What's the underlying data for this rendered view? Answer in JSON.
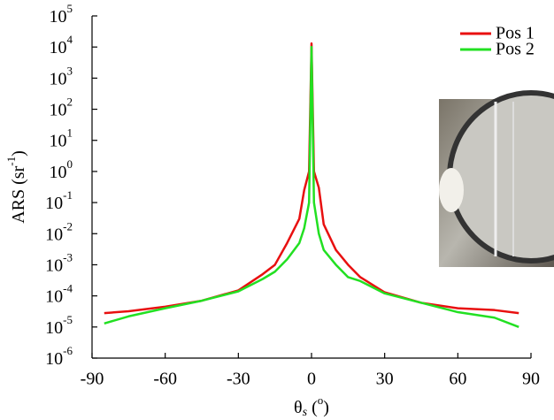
{
  "chart_data": {
    "type": "line",
    "log_y": true,
    "xlabel": [
      "θ",
      "s",
      " (",
      "o",
      ")"
    ],
    "ylabel": [
      "ARS (sr",
      "-1",
      ")"
    ],
    "x": [
      -85,
      -75,
      -60,
      -45,
      -30,
      -20,
      -15,
      -10,
      -5,
      -3,
      -1,
      0,
      1,
      3,
      5,
      10,
      15,
      20,
      30,
      45,
      60,
      75,
      85
    ],
    "series": [
      {
        "name": "Pos 1",
        "color": "#e81010",
        "values": [
          2.8e-05,
          3.2e-05,
          4.5e-05,
          7e-05,
          0.00015,
          0.0005,
          0.001,
          0.005,
          0.03,
          0.25,
          1,
          13000,
          1,
          0.3,
          0.02,
          0.003,
          0.001,
          0.0004,
          0.00013,
          6e-05,
          4e-05,
          3.5e-05,
          2.8e-05
        ]
      },
      {
        "name": "Pos 2",
        "color": "#22e022",
        "values": [
          1.3e-05,
          2.2e-05,
          4e-05,
          7e-05,
          0.00014,
          0.00035,
          0.0006,
          0.0015,
          0.005,
          0.015,
          0.1,
          10000,
          0.1,
          0.01,
          0.003,
          0.001,
          0.0004,
          0.0003,
          0.00012,
          6e-05,
          3e-05,
          2e-05,
          1e-05
        ]
      }
    ],
    "xlim": [
      -90,
      90
    ],
    "xticks": [
      -90,
      -60,
      -30,
      0,
      30,
      60,
      90
    ],
    "ylim": [
      1e-06,
      100000
    ],
    "yticks": [
      {
        "value": 1e-06,
        "label": "10",
        "exponent": "-6"
      },
      {
        "value": 1e-05,
        "label": "10",
        "exponent": "-5"
      },
      {
        "value": 0.0001,
        "label": "10",
        "exponent": "-4"
      },
      {
        "value": 0.001,
        "label": "10",
        "exponent": "-3"
      },
      {
        "value": 0.01,
        "label": "10",
        "exponent": "-2"
      },
      {
        "value": 0.1,
        "label": "10",
        "exponent": "-1"
      },
      {
        "value": 1,
        "label": "10",
        "exponent": "0"
      },
      {
        "value": 10,
        "label": "10",
        "exponent": "1"
      },
      {
        "value": 100,
        "label": "10",
        "exponent": "2"
      },
      {
        "value": 1000,
        "label": "10",
        "exponent": "3"
      },
      {
        "value": 10000,
        "label": "10",
        "exponent": "4"
      },
      {
        "value": 100000,
        "label": "10",
        "exponent": "5"
      }
    ],
    "legend": "upper right",
    "grid": false
  }
}
